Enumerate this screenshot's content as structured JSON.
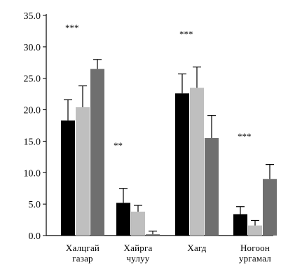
{
  "chart_data": {
    "type": "bar",
    "title": "",
    "xlabel": "",
    "ylabel": "",
    "ylim": [
      0,
      35
    ],
    "yticks": [
      "0.0",
      "5.0",
      "10.0",
      "15.0",
      "20.0",
      "25.0",
      "30.0",
      "35.0"
    ],
    "categories": [
      [
        "Халцгай",
        "газар"
      ],
      [
        "Хайрга",
        "чулуу"
      ],
      [
        "Хагд"
      ],
      [
        "Ногоон",
        "ургамал"
      ]
    ],
    "series": [
      {
        "color": "#000000",
        "values": [
          18.3,
          5.2,
          22.6,
          3.4
        ],
        "errors": [
          3.3,
          2.3,
          3.1,
          1.2
        ]
      },
      {
        "color": "#bfbfbf",
        "values": [
          20.4,
          3.8,
          23.5,
          1.6
        ],
        "errors": [
          3.4,
          1.0,
          3.3,
          0.8
        ]
      },
      {
        "color": "#6f6f6f",
        "values": [
          26.5,
          0.2,
          15.5,
          9.0
        ],
        "errors": [
          1.5,
          0.5,
          3.6,
          2.3
        ]
      }
    ],
    "significance": [
      "***",
      "**",
      "***",
      "***"
    ],
    "grid": false,
    "legend": "none"
  }
}
